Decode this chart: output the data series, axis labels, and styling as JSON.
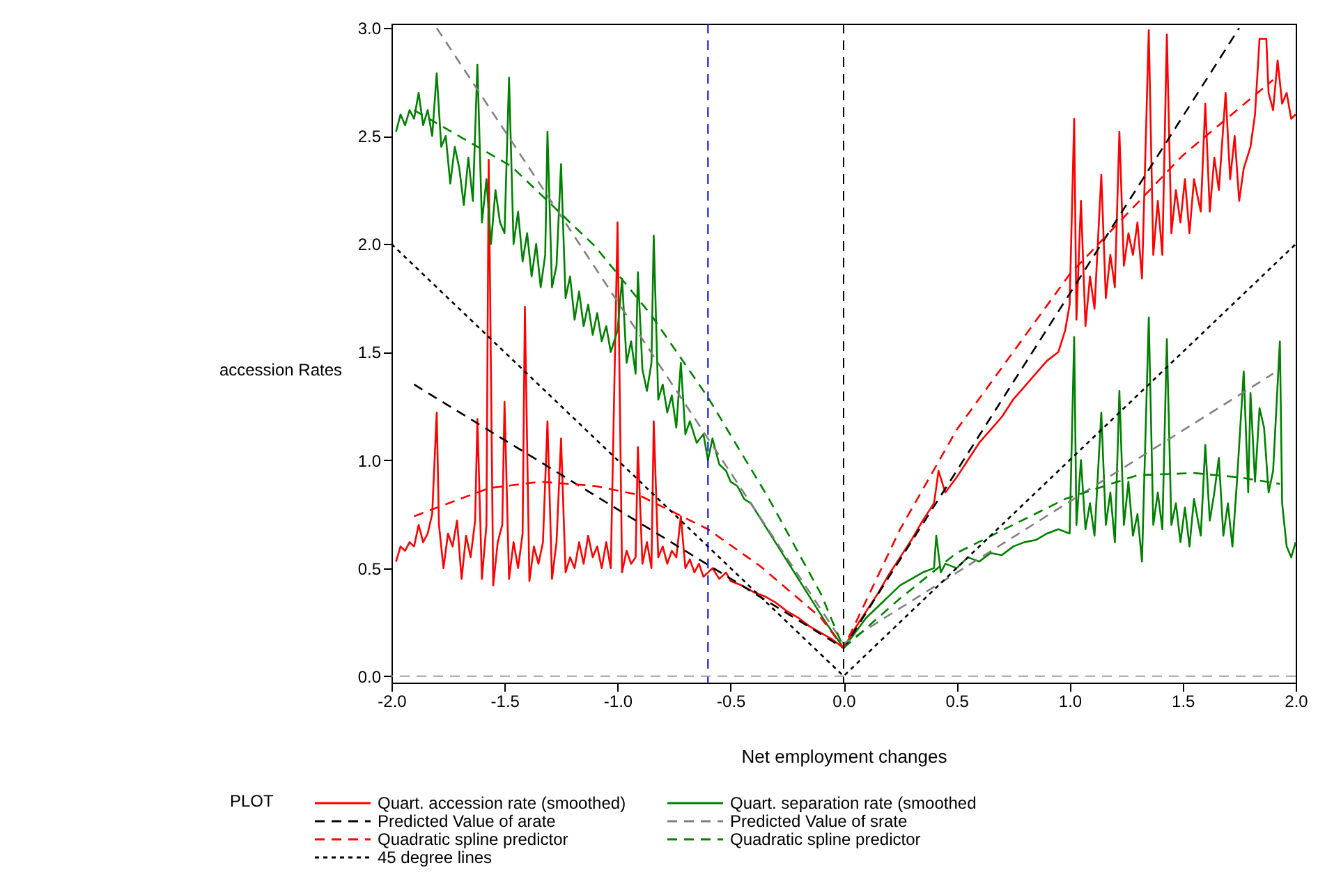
{
  "chart_data": {
    "type": "line",
    "xlabel": "Net employment changes",
    "ylabel": "accession Rates",
    "legend_title": "PLOT",
    "legend": "bottom",
    "grid": false,
    "xlim": [
      -2,
      2
    ],
    "xticks": [
      {
        "value": -2,
        "label": "-2.0"
      },
      {
        "value": -1.5,
        "label": "-1.5"
      },
      {
        "value": -1,
        "label": "-1.0"
      },
      {
        "value": -0.5,
        "label": "-0.5"
      },
      {
        "value": 0,
        "label": "0.0"
      },
      {
        "value": 0.5,
        "label": "0.5"
      },
      {
        "value": 1,
        "label": "1.0"
      },
      {
        "value": 1.5,
        "label": "1.5"
      },
      {
        "value": 2,
        "label": "2.0"
      }
    ],
    "ylim": [
      -0.03,
      3.02
    ],
    "yticks": [
      {
        "value": 0,
        "label": "0.0"
      },
      {
        "value": 0.5,
        "label": "0.5"
      },
      {
        "value": 1,
        "label": "1.0"
      },
      {
        "value": 1.5,
        "label": "1.5"
      },
      {
        "value": 2,
        "label": "2.0"
      },
      {
        "value": 2.5,
        "label": "2.5"
      },
      {
        "value": 3,
        "label": "3.0"
      }
    ],
    "series": [
      {
        "name": "Quart. accession rate (smoothed)",
        "color": "#ff0000",
        "line_style": "solid",
        "x": [
          -1.98,
          -1.96,
          -1.94,
          -1.92,
          -1.9,
          -1.88,
          -1.86,
          -1.84,
          -1.82,
          -1.8,
          -1.79,
          -1.77,
          -1.75,
          -1.73,
          -1.71,
          -1.69,
          -1.67,
          -1.65,
          -1.63,
          -1.62,
          -1.6,
          -1.58,
          -1.57,
          -1.55,
          -1.53,
          -1.51,
          -1.5,
          -1.48,
          -1.46,
          -1.44,
          -1.42,
          -1.41,
          -1.39,
          -1.37,
          -1.35,
          -1.33,
          -1.31,
          -1.29,
          -1.27,
          -1.25,
          -1.23,
          -1.21,
          -1.19,
          -1.17,
          -1.15,
          -1.13,
          -1.11,
          -1.09,
          -1.07,
          -1.05,
          -1.03,
          -1.0,
          -0.98,
          -0.96,
          -0.94,
          -0.92,
          -0.91,
          -0.89,
          -0.87,
          -0.85,
          -0.84,
          -0.82,
          -0.8,
          -0.78,
          -0.76,
          -0.74,
          -0.72,
          -0.7,
          -0.68,
          -0.66,
          -0.64,
          -0.62,
          -0.6,
          -0.58,
          -0.55,
          -0.52,
          -0.5,
          -0.45,
          -0.4,
          -0.35,
          -0.3,
          -0.25,
          -0.2,
          -0.15,
          -0.1,
          -0.05,
          0,
          0.05,
          0.1,
          0.15,
          0.2,
          0.25,
          0.3,
          0.35,
          0.4,
          0.42,
          0.45,
          0.5,
          0.55,
          0.6,
          0.65,
          0.7,
          0.75,
          0.8,
          0.85,
          0.9,
          0.95,
          0.98,
          1.0,
          1.02,
          1.03,
          1.05,
          1.07,
          1.09,
          1.11,
          1.14,
          1.16,
          1.18,
          1.2,
          1.22,
          1.24,
          1.26,
          1.28,
          1.3,
          1.32,
          1.35,
          1.37,
          1.39,
          1.41,
          1.43,
          1.45,
          1.47,
          1.49,
          1.51,
          1.53,
          1.55,
          1.58,
          1.6,
          1.62,
          1.64,
          1.66,
          1.69,
          1.71,
          1.73,
          1.75,
          1.77,
          1.8,
          1.82,
          1.84,
          1.87,
          1.88,
          1.9,
          1.92,
          1.94,
          1.96,
          1.98,
          2.0
        ],
        "values": [
          0.53,
          0.6,
          0.58,
          0.62,
          0.6,
          0.7,
          0.62,
          0.66,
          0.75,
          1.22,
          0.7,
          0.5,
          0.66,
          0.6,
          0.72,
          0.45,
          0.65,
          0.55,
          0.72,
          1.19,
          0.45,
          0.7,
          2.39,
          0.42,
          0.62,
          0.7,
          1.27,
          0.45,
          0.62,
          0.5,
          0.66,
          1.71,
          0.44,
          0.6,
          0.52,
          0.62,
          1.18,
          0.45,
          0.62,
          1.1,
          0.48,
          0.55,
          0.5,
          0.62,
          0.52,
          0.65,
          0.55,
          0.6,
          0.5,
          0.62,
          0.5,
          2.1,
          0.48,
          0.58,
          0.52,
          0.55,
          1.06,
          0.52,
          0.62,
          0.5,
          1.18,
          0.55,
          0.6,
          0.52,
          0.58,
          0.55,
          0.74,
          0.5,
          0.54,
          0.48,
          0.52,
          0.46,
          0.48,
          0.5,
          0.45,
          0.48,
          0.44,
          0.42,
          0.39,
          0.37,
          0.34,
          0.3,
          0.27,
          0.23,
          0.2,
          0.17,
          0.13,
          0.22,
          0.3,
          0.38,
          0.47,
          0.55,
          0.63,
          0.72,
          0.8,
          0.95,
          0.85,
          0.92,
          1.0,
          1.08,
          1.14,
          1.2,
          1.28,
          1.34,
          1.4,
          1.46,
          1.5,
          1.6,
          1.72,
          2.58,
          1.65,
          2.2,
          1.62,
          1.85,
          1.7,
          2.32,
          1.75,
          1.95,
          1.8,
          2.52,
          1.9,
          2.05,
          1.95,
          2.1,
          1.84,
          2.99,
          1.95,
          2.2,
          1.95,
          2.97,
          2.05,
          2.25,
          2.1,
          2.3,
          2.05,
          2.3,
          2.15,
          2.65,
          2.15,
          2.4,
          2.25,
          2.7,
          2.3,
          2.5,
          2.2,
          2.35,
          2.45,
          2.6,
          2.95,
          2.95,
          2.7,
          2.62,
          2.85,
          2.65,
          2.7,
          2.58,
          2.6
        ]
      },
      {
        "name": "Quart. separation rate (smoothed",
        "color": "#008000",
        "line_style": "solid",
        "x": [
          -1.98,
          -1.96,
          -1.94,
          -1.92,
          -1.9,
          -1.88,
          -1.86,
          -1.84,
          -1.82,
          -1.8,
          -1.78,
          -1.76,
          -1.74,
          -1.72,
          -1.7,
          -1.68,
          -1.66,
          -1.64,
          -1.62,
          -1.6,
          -1.58,
          -1.56,
          -1.54,
          -1.52,
          -1.5,
          -1.48,
          -1.46,
          -1.44,
          -1.42,
          -1.4,
          -1.38,
          -1.36,
          -1.34,
          -1.32,
          -1.31,
          -1.29,
          -1.27,
          -1.25,
          -1.23,
          -1.21,
          -1.19,
          -1.17,
          -1.15,
          -1.13,
          -1.11,
          -1.09,
          -1.07,
          -1.05,
          -1.03,
          -1.0,
          -0.98,
          -0.96,
          -0.94,
          -0.92,
          -0.91,
          -0.89,
          -0.87,
          -0.85,
          -0.84,
          -0.82,
          -0.8,
          -0.78,
          -0.76,
          -0.74,
          -0.72,
          -0.7,
          -0.68,
          -0.65,
          -0.62,
          -0.6,
          -0.58,
          -0.55,
          -0.52,
          -0.5,
          -0.47,
          -0.44,
          -0.41,
          -0.38,
          -0.35,
          -0.32,
          -0.29,
          -0.26,
          -0.23,
          -0.2,
          -0.17,
          -0.14,
          -0.11,
          -0.08,
          -0.04,
          0,
          0.05,
          0.1,
          0.15,
          0.2,
          0.25,
          0.3,
          0.35,
          0.4,
          0.41,
          0.43,
          0.45,
          0.5,
          0.55,
          0.6,
          0.65,
          0.7,
          0.75,
          0.8,
          0.85,
          0.9,
          0.95,
          1.0,
          1.02,
          1.03,
          1.05,
          1.07,
          1.09,
          1.11,
          1.14,
          1.16,
          1.18,
          1.2,
          1.22,
          1.24,
          1.26,
          1.28,
          1.3,
          1.32,
          1.35,
          1.37,
          1.39,
          1.41,
          1.43,
          1.45,
          1.47,
          1.49,
          1.51,
          1.53,
          1.55,
          1.58,
          1.6,
          1.62,
          1.64,
          1.66,
          1.68,
          1.7,
          1.72,
          1.74,
          1.77,
          1.79,
          1.8,
          1.82,
          1.84,
          1.86,
          1.88,
          1.9,
          1.93,
          1.94,
          1.96,
          1.98,
          2.0
        ],
        "values": [
          2.52,
          2.6,
          2.55,
          2.62,
          2.58,
          2.7,
          2.55,
          2.62,
          2.5,
          2.79,
          2.45,
          2.5,
          2.28,
          2.45,
          2.35,
          2.18,
          2.4,
          2.2,
          2.83,
          2.1,
          2.3,
          2.0,
          2.25,
          2.1,
          2.05,
          2.77,
          2.0,
          2.15,
          1.92,
          2.05,
          1.85,
          2.0,
          1.8,
          1.95,
          2.52,
          1.8,
          1.9,
          2.37,
          1.75,
          1.85,
          1.65,
          1.78,
          1.62,
          1.72,
          1.58,
          1.68,
          1.55,
          1.62,
          1.5,
          1.6,
          1.84,
          1.45,
          1.55,
          1.4,
          1.87,
          1.42,
          1.32,
          1.45,
          2.04,
          1.28,
          1.35,
          1.22,
          1.3,
          1.15,
          1.45,
          1.12,
          1.18,
          1.08,
          1.12,
          1.0,
          1.1,
          0.98,
          0.95,
          0.9,
          0.88,
          0.82,
          0.8,
          0.75,
          0.7,
          0.65,
          0.6,
          0.55,
          0.5,
          0.45,
          0.4,
          0.35,
          0.3,
          0.25,
          0.19,
          0.13,
          0.2,
          0.27,
          0.32,
          0.37,
          0.42,
          0.45,
          0.48,
          0.5,
          0.65,
          0.48,
          0.52,
          0.5,
          0.55,
          0.53,
          0.57,
          0.56,
          0.6,
          0.62,
          0.63,
          0.66,
          0.68,
          0.66,
          1.57,
          0.7,
          1.0,
          0.68,
          0.8,
          0.65,
          1.22,
          0.7,
          0.85,
          0.62,
          1.32,
          0.7,
          0.9,
          0.65,
          0.75,
          0.53,
          1.66,
          0.7,
          0.85,
          0.68,
          1.56,
          0.7,
          0.8,
          0.62,
          0.78,
          0.6,
          0.82,
          0.65,
          1.07,
          0.72,
          0.85,
          1.01,
          0.65,
          0.8,
          0.6,
          0.9,
          1.41,
          0.85,
          1.31,
          0.9,
          1.24,
          1.15,
          0.85,
          0.95,
          1.55,
          0.8,
          0.6,
          0.55,
          0.62
        ]
      },
      {
        "name": "Predicted Value of arate",
        "color": "#000000",
        "line_style": "dashed",
        "x": [
          -1.9,
          0,
          1.75
        ],
        "values": [
          1.35,
          0.13,
          3.0
        ]
      },
      {
        "name": "Predicted Value of srate",
        "color": "#808080",
        "line_style": "dashed",
        "x": [
          -1.8,
          0,
          1.9
        ],
        "values": [
          3.0,
          0.15,
          1.4
        ]
      },
      {
        "name": "Quadratic spline predictor",
        "color": "#ff0000",
        "line_style": "dashed",
        "x": [
          -1.9,
          -1.57,
          -1.34,
          -1.1,
          -0.91,
          -0.6,
          -0.37,
          -0.1,
          0,
          0.25,
          0.5,
          1.0,
          1.5,
          1.9
        ],
        "values": [
          0.74,
          0.87,
          0.9,
          0.88,
          0.84,
          0.68,
          0.51,
          0.27,
          0.13,
          0.68,
          1.14,
          1.86,
          2.41,
          2.76
        ]
      },
      {
        "name": "Quadratic spline predictor",
        "color": "#008000",
        "line_style": "dashed",
        "x": [
          -1.9,
          -1.47,
          -1.1,
          -0.85,
          -0.6,
          -0.33,
          -0.1,
          0,
          0.25,
          0.5,
          0.98,
          1.3,
          1.55,
          1.75,
          1.93
        ],
        "values": [
          2.62,
          2.36,
          1.99,
          1.67,
          1.29,
          0.82,
          0.38,
          0.13,
          0.36,
          0.57,
          0.82,
          0.93,
          0.94,
          0.92,
          0.89
        ]
      },
      {
        "name": "45 degree lines",
        "color": "#000000",
        "line_style": "dotted",
        "x": [
          -2,
          0,
          2
        ],
        "values": [
          2,
          0,
          2
        ]
      }
    ],
    "ref_lines": [
      {
        "axis": "x",
        "value": -0.6,
        "color": "#0000ff",
        "line_style": "dashed"
      },
      {
        "axis": "x",
        "value": 0,
        "color": "#000000",
        "line_style": "dashed"
      },
      {
        "axis": "y",
        "value": 0,
        "color": "#a0a0a0",
        "line_style": "dashed"
      }
    ]
  }
}
